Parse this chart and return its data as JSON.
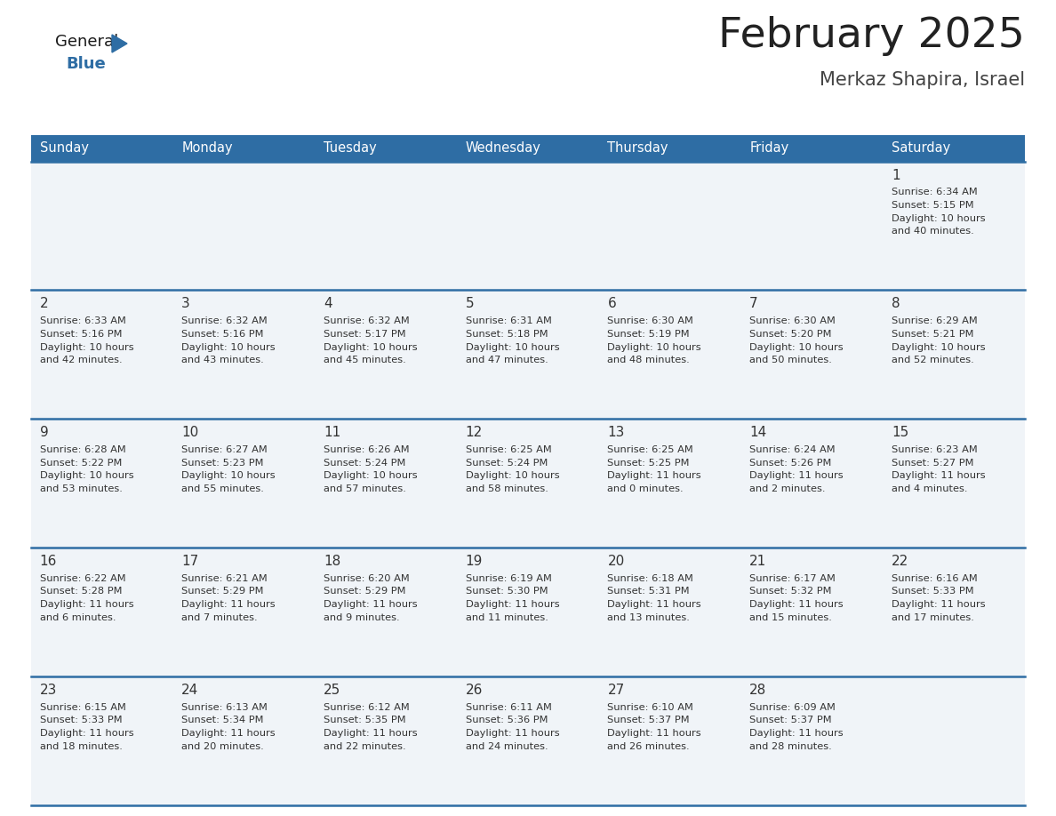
{
  "title": "February 2025",
  "subtitle": "Merkaz Shapira, Israel",
  "days_of_week": [
    "Sunday",
    "Monday",
    "Tuesday",
    "Wednesday",
    "Thursday",
    "Friday",
    "Saturday"
  ],
  "header_bg": "#2E6DA4",
  "header_text": "#FFFFFF",
  "cell_bg": "#F0F4F8",
  "border_color": "#2E6DA4",
  "text_color": "#333333",
  "title_color": "#222222",
  "subtitle_color": "#444444",
  "calendar_data": [
    [
      null,
      null,
      null,
      null,
      null,
      null,
      {
        "day": 1,
        "sunrise": "6:34 AM",
        "sunset": "5:15 PM",
        "daylight": "10 hours\nand 40 minutes."
      }
    ],
    [
      {
        "day": 2,
        "sunrise": "6:33 AM",
        "sunset": "5:16 PM",
        "daylight": "10 hours\nand 42 minutes."
      },
      {
        "day": 3,
        "sunrise": "6:32 AM",
        "sunset": "5:16 PM",
        "daylight": "10 hours\nand 43 minutes."
      },
      {
        "day": 4,
        "sunrise": "6:32 AM",
        "sunset": "5:17 PM",
        "daylight": "10 hours\nand 45 minutes."
      },
      {
        "day": 5,
        "sunrise": "6:31 AM",
        "sunset": "5:18 PM",
        "daylight": "10 hours\nand 47 minutes."
      },
      {
        "day": 6,
        "sunrise": "6:30 AM",
        "sunset": "5:19 PM",
        "daylight": "10 hours\nand 48 minutes."
      },
      {
        "day": 7,
        "sunrise": "6:30 AM",
        "sunset": "5:20 PM",
        "daylight": "10 hours\nand 50 minutes."
      },
      {
        "day": 8,
        "sunrise": "6:29 AM",
        "sunset": "5:21 PM",
        "daylight": "10 hours\nand 52 minutes."
      }
    ],
    [
      {
        "day": 9,
        "sunrise": "6:28 AM",
        "sunset": "5:22 PM",
        "daylight": "10 hours\nand 53 minutes."
      },
      {
        "day": 10,
        "sunrise": "6:27 AM",
        "sunset": "5:23 PM",
        "daylight": "10 hours\nand 55 minutes."
      },
      {
        "day": 11,
        "sunrise": "6:26 AM",
        "sunset": "5:24 PM",
        "daylight": "10 hours\nand 57 minutes."
      },
      {
        "day": 12,
        "sunrise": "6:25 AM",
        "sunset": "5:24 PM",
        "daylight": "10 hours\nand 58 minutes."
      },
      {
        "day": 13,
        "sunrise": "6:25 AM",
        "sunset": "5:25 PM",
        "daylight": "11 hours\nand 0 minutes."
      },
      {
        "day": 14,
        "sunrise": "6:24 AM",
        "sunset": "5:26 PM",
        "daylight": "11 hours\nand 2 minutes."
      },
      {
        "day": 15,
        "sunrise": "6:23 AM",
        "sunset": "5:27 PM",
        "daylight": "11 hours\nand 4 minutes."
      }
    ],
    [
      {
        "day": 16,
        "sunrise": "6:22 AM",
        "sunset": "5:28 PM",
        "daylight": "11 hours\nand 6 minutes."
      },
      {
        "day": 17,
        "sunrise": "6:21 AM",
        "sunset": "5:29 PM",
        "daylight": "11 hours\nand 7 minutes."
      },
      {
        "day": 18,
        "sunrise": "6:20 AM",
        "sunset": "5:29 PM",
        "daylight": "11 hours\nand 9 minutes."
      },
      {
        "day": 19,
        "sunrise": "6:19 AM",
        "sunset": "5:30 PM",
        "daylight": "11 hours\nand 11 minutes."
      },
      {
        "day": 20,
        "sunrise": "6:18 AM",
        "sunset": "5:31 PM",
        "daylight": "11 hours\nand 13 minutes."
      },
      {
        "day": 21,
        "sunrise": "6:17 AM",
        "sunset": "5:32 PM",
        "daylight": "11 hours\nand 15 minutes."
      },
      {
        "day": 22,
        "sunrise": "6:16 AM",
        "sunset": "5:33 PM",
        "daylight": "11 hours\nand 17 minutes."
      }
    ],
    [
      {
        "day": 23,
        "sunrise": "6:15 AM",
        "sunset": "5:33 PM",
        "daylight": "11 hours\nand 18 minutes."
      },
      {
        "day": 24,
        "sunrise": "6:13 AM",
        "sunset": "5:34 PM",
        "daylight": "11 hours\nand 20 minutes."
      },
      {
        "day": 25,
        "sunrise": "6:12 AM",
        "sunset": "5:35 PM",
        "daylight": "11 hours\nand 22 minutes."
      },
      {
        "day": 26,
        "sunrise": "6:11 AM",
        "sunset": "5:36 PM",
        "daylight": "11 hours\nand 24 minutes."
      },
      {
        "day": 27,
        "sunrise": "6:10 AM",
        "sunset": "5:37 PM",
        "daylight": "11 hours\nand 26 minutes."
      },
      {
        "day": 28,
        "sunrise": "6:09 AM",
        "sunset": "5:37 PM",
        "daylight": "11 hours\nand 28 minutes."
      },
      null
    ]
  ],
  "fig_width": 11.88,
  "fig_height": 9.18,
  "dpi": 100
}
